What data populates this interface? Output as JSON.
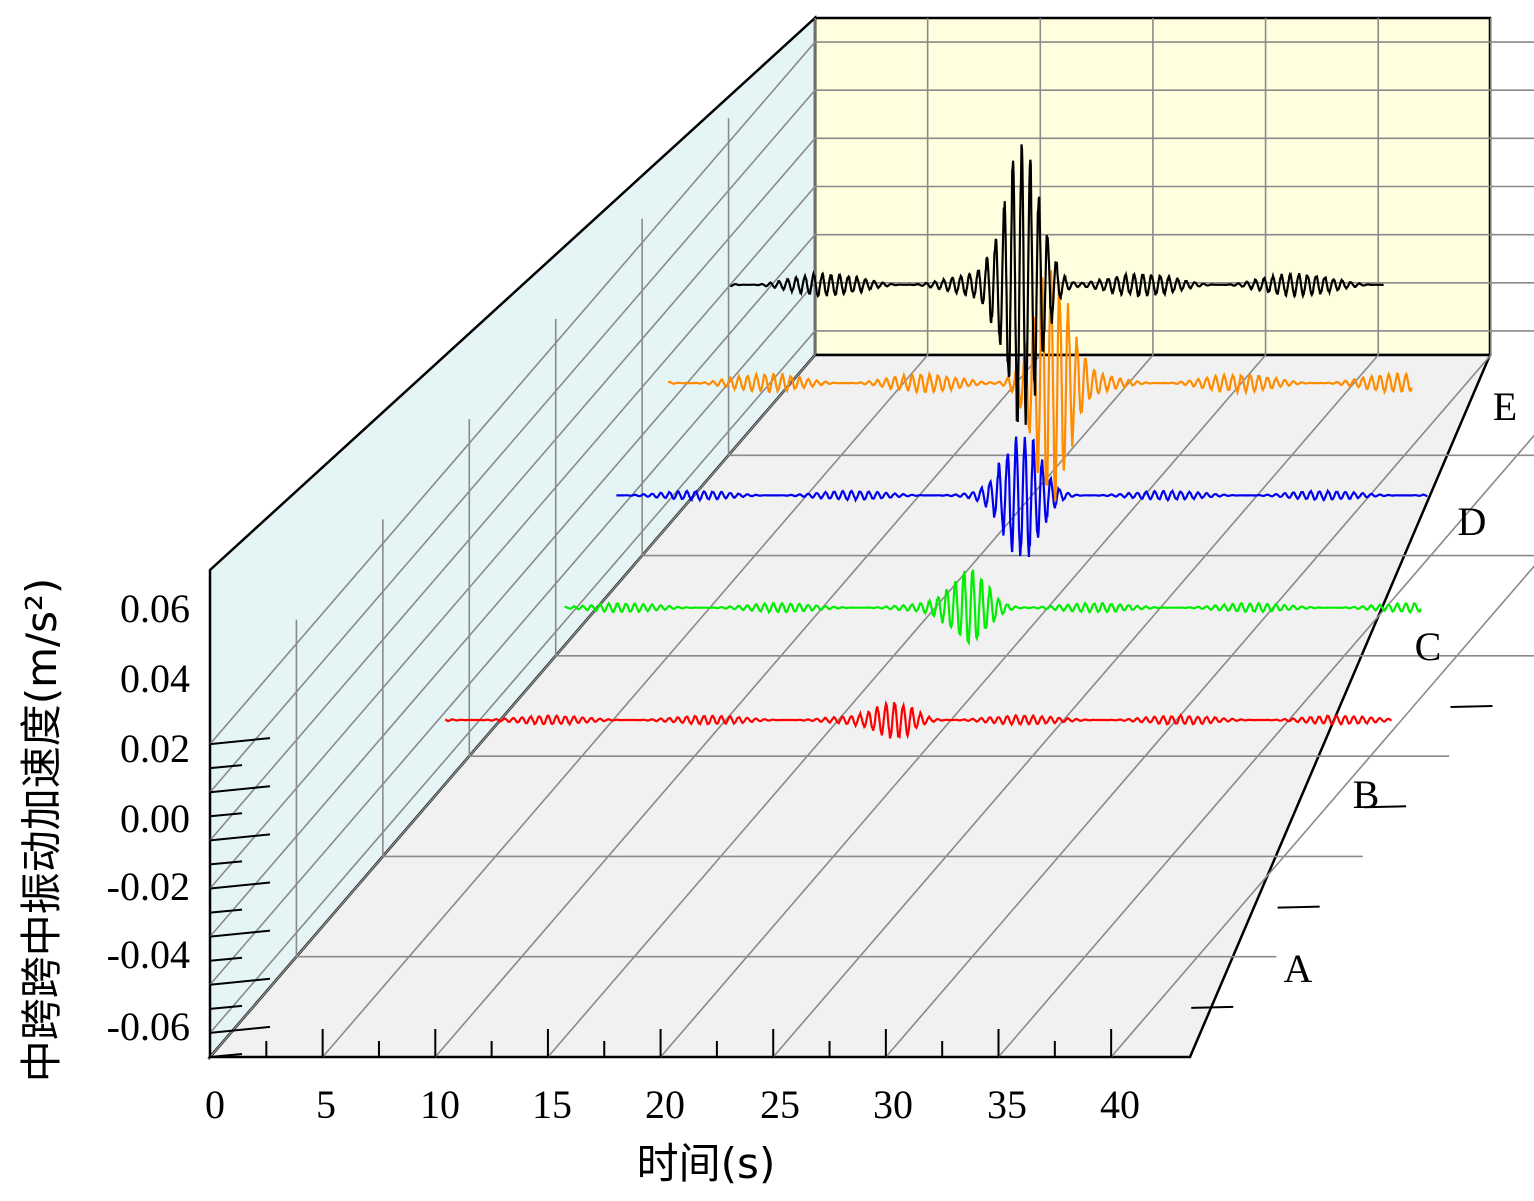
{
  "chart_data": {
    "type": "line",
    "subtype": "3d-waterfall",
    "title": "",
    "xlabel": "时间(s)",
    "ylabel": "中跨跨中振动加速度(m/s²)",
    "xlim": [
      0,
      42
    ],
    "ylim": [
      -0.07,
      0.07
    ],
    "x_ticks": [
      "0",
      "5",
      "10",
      "15",
      "20",
      "25",
      "30",
      "35",
      "40"
    ],
    "y_ticks": [
      "0.06",
      "0.04",
      "0.02",
      "0.00",
      "-0.02",
      "-0.04",
      "-0.06"
    ],
    "depth_categories": [
      "A",
      "B",
      "C",
      "D",
      "E"
    ],
    "grid": true,
    "series": [
      {
        "name": "A",
        "color": "#ff0000",
        "t_start": 4,
        "t_end": 46,
        "center": 24,
        "peak": 0.007,
        "base_amp": 0.002
      },
      {
        "name": "B",
        "color": "#00ee00",
        "t_start": 5,
        "t_end": 43,
        "center": 23,
        "peak": 0.016,
        "base_amp": 0.002
      },
      {
        "name": "C",
        "color": "#0000ee",
        "t_start": 3,
        "t_end": 39,
        "center": 21,
        "peak": 0.028,
        "base_amp": 0.002
      },
      {
        "name": "D",
        "color": "#ff8c00",
        "t_start": 1,
        "t_end": 34,
        "center": 18,
        "peak": 0.05,
        "base_amp": 0.004
      },
      {
        "name": "E",
        "color": "#000000",
        "t_start": 0,
        "t_end": 29,
        "center": 13,
        "peak": 0.063,
        "base_amp": 0.005
      }
    ]
  }
}
